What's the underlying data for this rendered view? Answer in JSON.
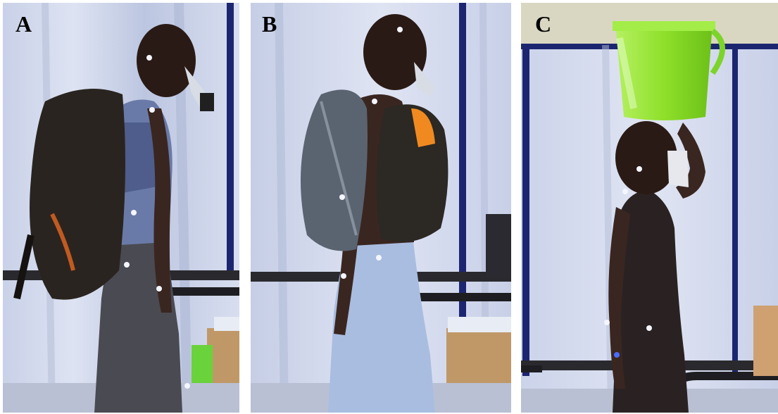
{
  "figure": {
    "panels": [
      {
        "label": "A",
        "scene": "backpack-load"
      },
      {
        "label": "B",
        "scene": "front-back-pack-load"
      },
      {
        "label": "C",
        "scene": "head-load-bucket"
      }
    ]
  },
  "colors": {
    "curtain": "#cfd6ea",
    "curtain_fold": "#b6bfd8",
    "frame_pole": "#1c2670",
    "skin": "#3a2620",
    "backpack": "#2a2420",
    "jeans_light": "#a9bde0",
    "bucket": "#8ee02a",
    "marker": "#f4f6ff"
  }
}
